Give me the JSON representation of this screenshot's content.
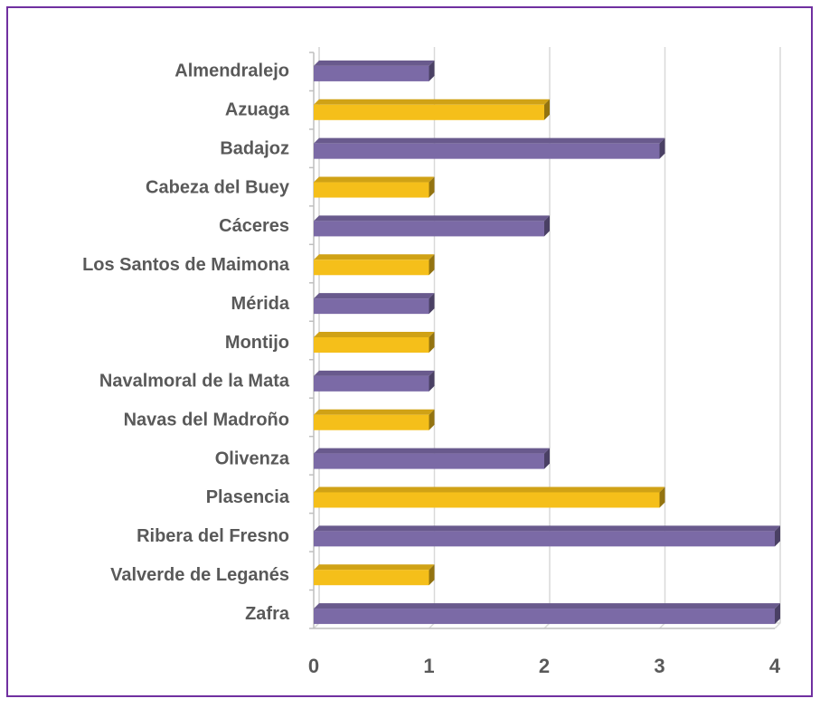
{
  "chart_data": {
    "type": "bar",
    "orientation": "horizontal",
    "categories": [
      "Almendralejo",
      "Azuaga",
      "Badajoz",
      "Cabeza del Buey",
      "Cáceres",
      "Los Santos de Maimona",
      "Mérida",
      "Montijo",
      "Navalmoral de la Mata",
      "Navas del Madroño",
      "Olivenza",
      "Plasencia",
      "Ribera del Fresno",
      "Valverde de Leganés",
      "Zafra"
    ],
    "values": [
      1,
      2,
      3,
      1,
      2,
      1,
      1,
      1,
      1,
      1,
      2,
      3,
      4,
      1,
      4
    ],
    "colors": [
      "#7b6aa6",
      "#f5bf1a",
      "#7b6aa6",
      "#f5bf1a",
      "#7b6aa6",
      "#f5bf1a",
      "#7b6aa6",
      "#f5bf1a",
      "#7b6aa6",
      "#f5bf1a",
      "#7b6aa6",
      "#f5bf1a",
      "#7b6aa6",
      "#f5bf1a",
      "#7b6aa6"
    ],
    "xlim": [
      0,
      4
    ],
    "xticks": [
      0,
      1,
      2,
      3,
      4
    ],
    "grid": true
  }
}
